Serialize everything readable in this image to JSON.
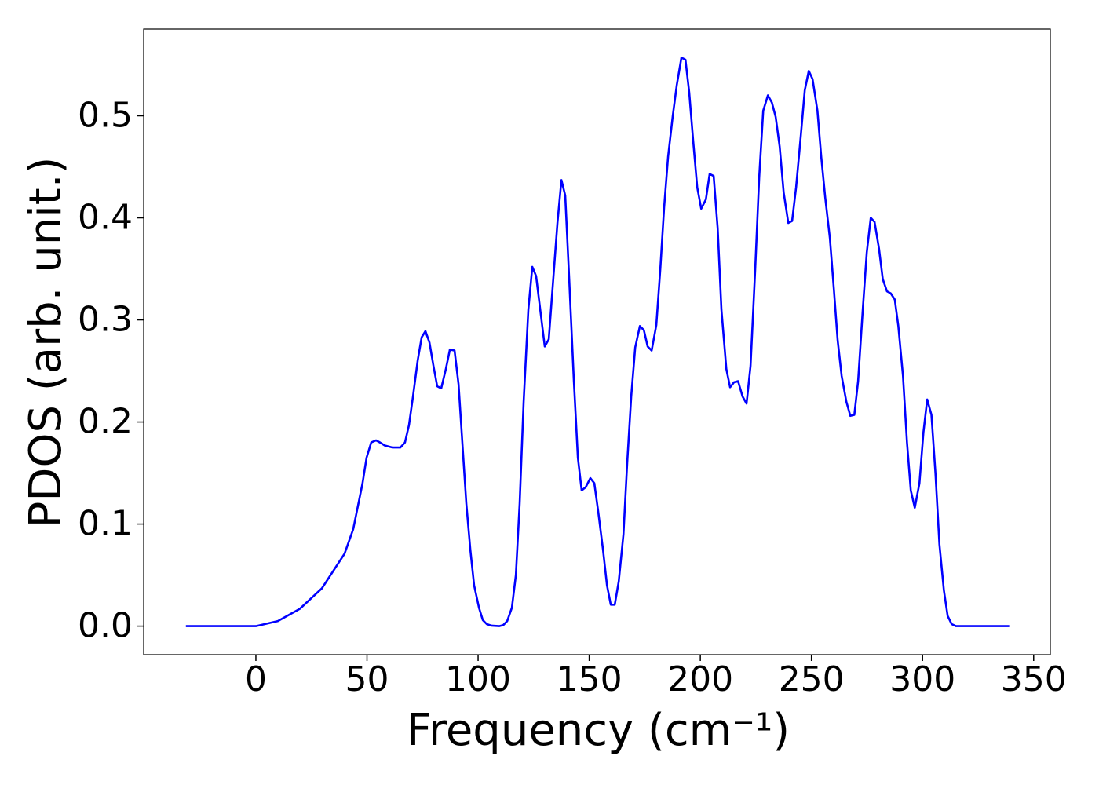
{
  "chart_data": {
    "type": "line",
    "x_label": "Frequency (cm⁻¹)",
    "y_label": "PDOS (arb. unit.)",
    "color": "#0000ff",
    "x": [
      -31.5,
      0,
      9.9,
      19.8,
      29.7,
      39.9,
      43.8,
      48,
      49.8,
      51.9,
      54.1,
      55.8,
      58,
      61.5,
      65,
      67.1,
      68.9,
      70.7,
      72.8,
      74.6,
      76.3,
      78.1,
      79.9,
      81.6,
      83.4,
      85.5,
      87.3,
      89.4,
      91.2,
      92.9,
      94.7,
      96.5,
      98.2,
      100.4,
      102.1,
      103.9,
      106,
      109.5,
      111.3,
      113.1,
      115.2,
      117,
      118.7,
      120.5,
      122.6,
      124.4,
      126.1,
      130,
      131.8,
      135.7,
      137.5,
      139.2,
      141,
      143.1,
      144.9,
      146.6,
      148.4,
      150.5,
      152.3,
      154,
      156.2,
      158,
      159.7,
      161.5,
      163.3,
      165.4,
      167.1,
      168.9,
      170.7,
      172.8,
      174.6,
      176.3,
      178.1,
      180.2,
      182,
      183.7,
      185.5,
      187.6,
      189.4,
      191.5,
      193.3,
      195,
      196.8,
      198.6,
      200.4,
      202.5,
      204.2,
      206,
      207.8,
      209.5,
      211.7,
      213.4,
      215.2,
      217,
      219,
      220.8,
      222.6,
      224.7,
      226.5,
      228.3,
      230.4,
      232.2,
      233.9,
      235.7,
      237.5,
      239.6,
      241.3,
      243.1,
      245.2,
      247,
      248.8,
      250.5,
      252.7,
      254.4,
      256.2,
      258.3,
      260.1,
      261.8,
      263.6,
      265.7,
      267.5,
      269.3,
      271,
      273.1,
      274.9,
      276.7,
      278.4,
      280.4,
      282.1,
      284,
      285.7,
      287.5,
      289.1,
      291.2,
      293,
      294.7,
      296.5,
      298.6,
      300.4,
      302.1,
      304,
      305.8,
      307.6,
      309.6,
      311.3,
      313.1,
      315,
      339
    ],
    "values": [
      0,
      0,
      0.005,
      0.017,
      0.037,
      0.071,
      0.095,
      0.14,
      0.165,
      0.18,
      0.182,
      0.18,
      0.177,
      0.175,
      0.175,
      0.18,
      0.197,
      0.225,
      0.26,
      0.283,
      0.289,
      0.278,
      0.255,
      0.235,
      0.233,
      0.252,
      0.271,
      0.27,
      0.237,
      0.18,
      0.12,
      0.075,
      0.04,
      0.018,
      0.006,
      0.002,
      0.0005,
      0,
      0.001,
      0.005,
      0.018,
      0.05,
      0.12,
      0.22,
      0.31,
      0.352,
      0.343,
      0.274,
      0.281,
      0.395,
      0.437,
      0.422,
      0.34,
      0.24,
      0.165,
      0.133,
      0.136,
      0.145,
      0.14,
      0.113,
      0.075,
      0.04,
      0.021,
      0.021,
      0.044,
      0.09,
      0.16,
      0.225,
      0.273,
      0.294,
      0.29,
      0.274,
      0.27,
      0.295,
      0.35,
      0.41,
      0.46,
      0.5,
      0.53,
      0.557,
      0.555,
      0.523,
      0.475,
      0.43,
      0.409,
      0.418,
      0.443,
      0.441,
      0.39,
      0.31,
      0.252,
      0.234,
      0.239,
      0.24,
      0.225,
      0.218,
      0.255,
      0.35,
      0.44,
      0.505,
      0.52,
      0.513,
      0.499,
      0.47,
      0.425,
      0.395,
      0.397,
      0.43,
      0.48,
      0.525,
      0.544,
      0.536,
      0.505,
      0.46,
      0.42,
      0.38,
      0.33,
      0.28,
      0.245,
      0.22,
      0.206,
      0.207,
      0.24,
      0.31,
      0.366,
      0.4,
      0.396,
      0.37,
      0.34,
      0.328,
      0.326,
      0.32,
      0.294,
      0.245,
      0.18,
      0.133,
      0.116,
      0.14,
      0.19,
      0.222,
      0.207,
      0.15,
      0.08,
      0.035,
      0.01,
      0.002,
      0,
      0
    ],
    "xlim": [
      -50.5,
      357.5
    ],
    "ylim": [
      -0.028,
      0.585
    ],
    "xticks": [
      0,
      50,
      100,
      150,
      200,
      250,
      300,
      350
    ],
    "yticks": [
      {
        "value": 0,
        "label": "0.0"
      },
      0.1,
      0.2,
      0.3,
      0.4,
      0.5
    ],
    "grid": false
  }
}
